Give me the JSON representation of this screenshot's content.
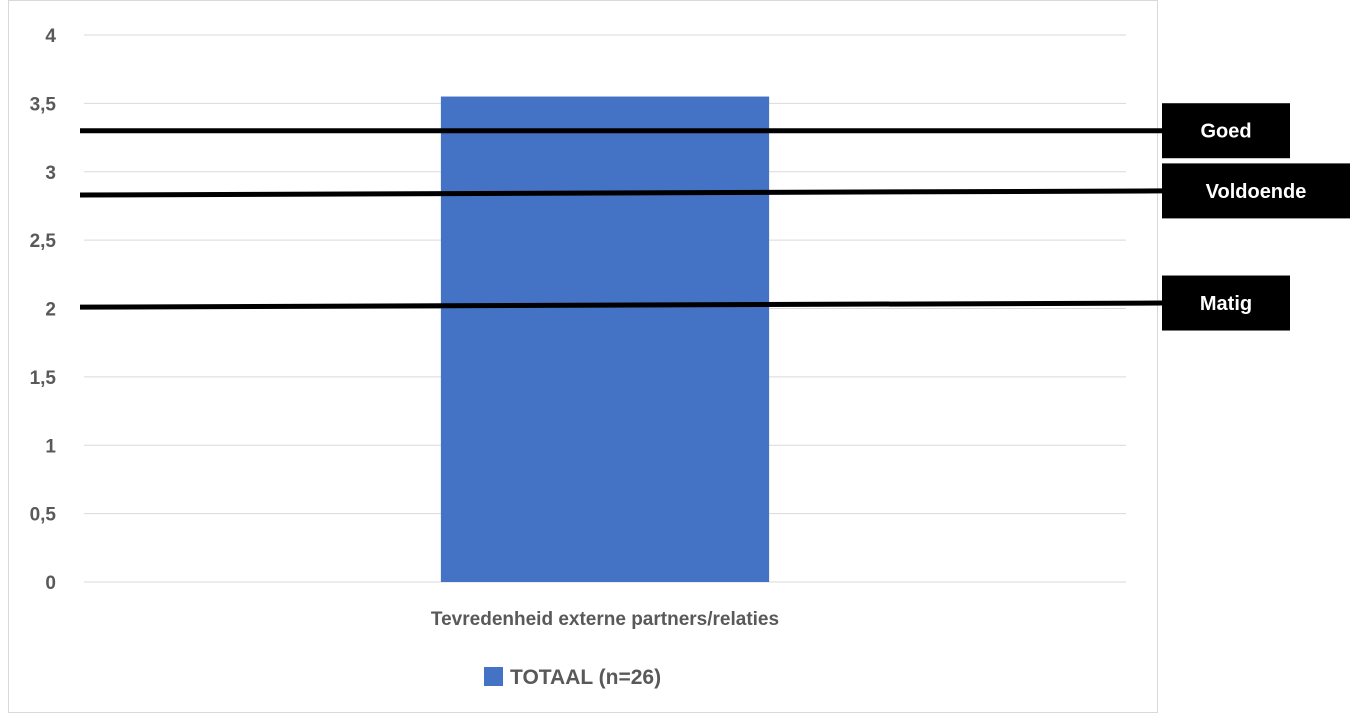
{
  "chart_data": {
    "type": "bar",
    "categories": [
      "Tevredenheid externe partners/relaties"
    ],
    "series": [
      {
        "name": "TOTAAL (n=26)",
        "values": [
          3.55
        ],
        "color": "#4472C4"
      }
    ],
    "ylim": [
      0,
      4
    ],
    "yticks": [
      0,
      0.5,
      1,
      1.5,
      2,
      2.5,
      3,
      3.5,
      4
    ],
    "ytick_labels": [
      "0",
      "0,5",
      "1",
      "1,5",
      "2",
      "2,5",
      "3",
      "3,5",
      "4"
    ],
    "grid": true,
    "legend": "bottom",
    "reference_lines": [
      {
        "label": "Goed",
        "y_start": 3.3,
        "y_end": 3.3
      },
      {
        "label": "Voldoende",
        "y_start": 2.83,
        "y_end": 2.86
      },
      {
        "label": "Matig",
        "y_start": 2.01,
        "y_end": 2.04
      }
    ],
    "colors": {
      "grid": "#d9d9d9",
      "text": "#595959",
      "reference": "#000000",
      "bar": "#4472C4"
    }
  }
}
